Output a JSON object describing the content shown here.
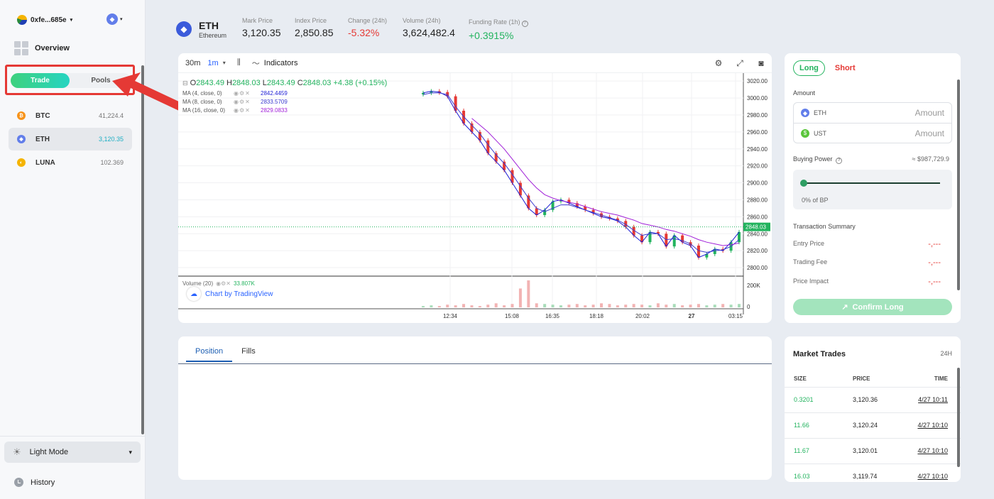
{
  "sidebar": {
    "wallet": "0xfe...685e",
    "overview": "Overview",
    "toggle": {
      "trade": "Trade",
      "pools": "Pools"
    },
    "coins": [
      {
        "symbol": "BTC",
        "price": "41,224.4",
        "color": "#f7931a",
        "icon": "bitcoin-icon"
      },
      {
        "symbol": "ETH",
        "price": "3,120.35",
        "color": "#627eea",
        "icon": "ethereum-icon"
      },
      {
        "symbol": "LUNA",
        "price": "102.369",
        "color": "#f5b400",
        "icon": "luna-icon"
      }
    ],
    "light_mode": "Light Mode",
    "history": "History"
  },
  "header": {
    "symbol": "ETH",
    "name": "Ethereum",
    "mark_price_label": "Mark Price",
    "mark_price": "3,120.35",
    "index_price_label": "Index Price",
    "index_price": "2,850.85",
    "change_label": "Change (24h)",
    "change": "-5.32%",
    "volume_label": "Volume (24h)",
    "volume": "3,624,482.4",
    "funding_label": "Funding Rate (1h)",
    "funding": "+0.3915%"
  },
  "chart": {
    "tf_30m": "30m",
    "tf_1m": "1m",
    "indicators": "Indicators",
    "ohlc": {
      "o": "2843.49",
      "h": "2848.03",
      "l": "2843.49",
      "c": "2848.03",
      "chg": "+4.38 (+0.15%)"
    },
    "ma": [
      {
        "label": "MA (4, close, 0)",
        "value": "2842.4459",
        "color": "#1c1cd4"
      },
      {
        "label": "MA (8, close, 0)",
        "value": "2833.5709",
        "color": "#3a3ad0"
      },
      {
        "label": "MA (16, close, 0)",
        "value": "2829.0833",
        "color": "#a020d8"
      }
    ],
    "volume_label": "Volume (20)",
    "volume_value": "33.807K",
    "attribution": "Chart by TradingView",
    "last_price": "2848.03"
  },
  "chart_data": {
    "type": "line",
    "y_ticks": [
      "3020.00",
      "3000.00",
      "2980.00",
      "2960.00",
      "2940.00",
      "2920.00",
      "2900.00",
      "2880.00",
      "2860.00",
      "2840.00",
      "2820.00",
      "2800.00"
    ],
    "x_ticks": [
      "12:34",
      "15:08",
      "16:35",
      "18:18",
      "20:02",
      "27",
      "03:15"
    ],
    "volume_ticks": [
      "200K",
      "0"
    ],
    "ylim": [
      2790,
      3026
    ],
    "series": [
      {
        "name": "MA (4, close, 0)",
        "color": "#1c1cd4",
        "values": [
          3006,
          3008,
          3007,
          3002,
          2985,
          2970,
          2960,
          2950,
          2935,
          2925,
          2915,
          2900,
          2885,
          2870,
          2862,
          2868,
          2878,
          2880,
          2876,
          2872,
          2868,
          2864,
          2860,
          2858,
          2855,
          2848,
          2838,
          2830,
          2842,
          2840,
          2825,
          2838,
          2830,
          2826,
          2812,
          2816,
          2822,
          2820,
          2830,
          2842
        ]
      },
      {
        "name": "MA (8, close, 0)",
        "color": "#3a3ad0",
        "values": [
          3004,
          3006,
          3006,
          3004,
          2990,
          2978,
          2968,
          2958,
          2945,
          2933,
          2923,
          2910,
          2896,
          2882,
          2870,
          2866,
          2870,
          2874,
          2874,
          2871,
          2868,
          2865,
          2862,
          2859,
          2856,
          2851,
          2844,
          2838,
          2840,
          2840,
          2833,
          2834,
          2832,
          2828,
          2820,
          2818,
          2820,
          2821,
          2825,
          2833
        ]
      },
      {
        "name": "MA (16, close, 0)",
        "color": "#a020d8",
        "values": [
          null,
          null,
          null,
          null,
          null,
          null,
          2976,
          2968,
          2960,
          2950,
          2940,
          2928,
          2916,
          2904,
          2894,
          2886,
          2882,
          2879,
          2877,
          2875,
          2872,
          2869,
          2866,
          2864,
          2862,
          2859,
          2856,
          2852,
          2850,
          2848,
          2845,
          2843,
          2840,
          2837,
          2833,
          2830,
          2828,
          2826,
          2827,
          2829
        ]
      }
    ],
    "volume": [
      2,
      3,
      2,
      4,
      3,
      5,
      3,
      2,
      4,
      6,
      3,
      5,
      28,
      40,
      6,
      5,
      4,
      3,
      4,
      5,
      3,
      4,
      6,
      5,
      3,
      4,
      5,
      4,
      3,
      6,
      4,
      5,
      3,
      4,
      5,
      3,
      4,
      5,
      4,
      5
    ],
    "grid": true
  },
  "order": {
    "long": "Long",
    "short": "Short",
    "amount_label": "Amount",
    "eth": "ETH",
    "ust": "UST",
    "amount_placeholder": "Amount",
    "buying_power_label": "Buying Power",
    "buying_power": "≈ $987,729.9",
    "slider_label": "0% of BP",
    "slider_percent": 0,
    "summary_label": "Transaction Summary",
    "entry_price_label": "Entry Price",
    "trading_fee_label": "Trading Fee",
    "price_impact_label": "Price Impact",
    "empty_value": "-,---",
    "confirm": "Confirm Long"
  },
  "position": {
    "tab_position": "Position",
    "tab_fills": "Fills"
  },
  "market_trades": {
    "title": "Market Trades",
    "period": "24H",
    "headers": {
      "size": "SIZE",
      "price": "PRICE",
      "time": "TIME"
    },
    "rows": [
      {
        "size": "0.3201",
        "price": "3,120.36",
        "time": "4/27 10:11"
      },
      {
        "size": "11.66",
        "price": "3,120.24",
        "time": "4/27 10:10"
      },
      {
        "size": "11.67",
        "price": "3,120.01",
        "time": "4/27 10:10"
      },
      {
        "size": "16.03",
        "price": "3,119.74",
        "time": "4/27 10:10"
      }
    ]
  },
  "colors": {
    "up": "#22b35e",
    "down": "#e53935",
    "accent": "#2962ff",
    "highlight": "#e53935"
  }
}
